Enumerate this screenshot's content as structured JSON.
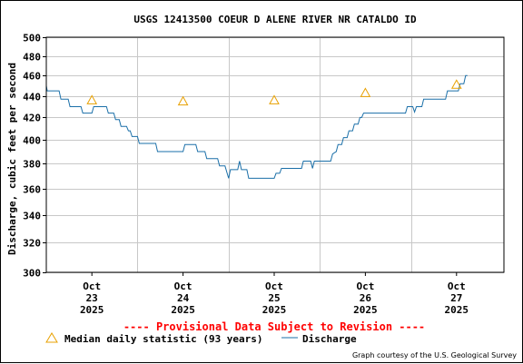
{
  "chart_data": {
    "type": "line",
    "title": "USGS 12413500 COEUR D ALENE RIVER NR CATALDO ID",
    "ylabel": "Discharge, cubic feet per second",
    "xlabel": "",
    "ylim": [
      300,
      500
    ],
    "yscale": "log",
    "yticks": [
      300,
      320,
      340,
      360,
      380,
      400,
      420,
      440,
      460,
      480,
      500
    ],
    "grid": true,
    "x_ticks": [
      {
        "day": 0.5,
        "l1": "Oct",
        "l2": "23",
        "l3": "2025"
      },
      {
        "day": 1.5,
        "l1": "Oct",
        "l2": "24",
        "l3": "2025"
      },
      {
        "day": 2.5,
        "l1": "Oct",
        "l2": "25",
        "l3": "2025"
      },
      {
        "day": 3.5,
        "l1": "Oct",
        "l2": "26",
        "l3": "2025"
      },
      {
        "day": 4.5,
        "l1": "Oct",
        "l2": "27",
        "l3": "2025"
      }
    ],
    "x_gridlines": [
      1,
      2,
      3,
      4
    ],
    "xlim_days": [
      0,
      5.02
    ],
    "series": [
      {
        "name": "Median daily statistic (93 years)",
        "marker": "triangle",
        "color": "#e8a000",
        "points": [
          {
            "day": 0.5,
            "value": 436
          },
          {
            "day": 1.5,
            "value": 435
          },
          {
            "day": 2.5,
            "value": 436
          },
          {
            "day": 3.5,
            "value": 443
          },
          {
            "day": 4.5,
            "value": 451
          }
        ]
      },
      {
        "name": "Discharge",
        "marker": "line",
        "color": "#1a6fa8",
        "points": [
          {
            "day": 0.0,
            "value": 450
          },
          {
            "day": 0.01,
            "value": 445
          },
          {
            "day": 0.14,
            "value": 445
          },
          {
            "day": 0.16,
            "value": 437
          },
          {
            "day": 0.24,
            "value": 437
          },
          {
            "day": 0.26,
            "value": 430
          },
          {
            "day": 0.38,
            "value": 430
          },
          {
            "day": 0.4,
            "value": 424
          },
          {
            "day": 0.5,
            "value": 424
          },
          {
            "day": 0.52,
            "value": 430
          },
          {
            "day": 0.66,
            "value": 430
          },
          {
            "day": 0.68,
            "value": 424
          },
          {
            "day": 0.74,
            "value": 424
          },
          {
            "day": 0.76,
            "value": 418
          },
          {
            "day": 0.8,
            "value": 418
          },
          {
            "day": 0.82,
            "value": 412
          },
          {
            "day": 0.88,
            "value": 412
          },
          {
            "day": 0.9,
            "value": 408
          },
          {
            "day": 0.92,
            "value": 408
          },
          {
            "day": 0.94,
            "value": 403
          },
          {
            "day": 1.0,
            "value": 403
          },
          {
            "day": 1.02,
            "value": 397
          },
          {
            "day": 1.2,
            "value": 397
          },
          {
            "day": 1.22,
            "value": 390
          },
          {
            "day": 1.5,
            "value": 390
          },
          {
            "day": 1.52,
            "value": 396
          },
          {
            "day": 1.64,
            "value": 396
          },
          {
            "day": 1.66,
            "value": 390
          },
          {
            "day": 1.74,
            "value": 390
          },
          {
            "day": 1.76,
            "value": 384
          },
          {
            "day": 1.88,
            "value": 384
          },
          {
            "day": 1.9,
            "value": 378
          },
          {
            "day": 1.96,
            "value": 378
          },
          {
            "day": 1.98,
            "value": 373
          },
          {
            "day": 2.0,
            "value": 368
          },
          {
            "day": 2.02,
            "value": 375
          },
          {
            "day": 2.1,
            "value": 375
          },
          {
            "day": 2.12,
            "value": 382
          },
          {
            "day": 2.14,
            "value": 375
          },
          {
            "day": 2.2,
            "value": 375
          },
          {
            "day": 2.22,
            "value": 368
          },
          {
            "day": 2.5,
            "value": 368
          },
          {
            "day": 2.52,
            "value": 372
          },
          {
            "day": 2.56,
            "value": 372
          },
          {
            "day": 2.58,
            "value": 376
          },
          {
            "day": 2.8,
            "value": 376
          },
          {
            "day": 2.82,
            "value": 382
          },
          {
            "day": 2.9,
            "value": 382
          },
          {
            "day": 2.92,
            "value": 376
          },
          {
            "day": 2.94,
            "value": 382
          },
          {
            "day": 3.12,
            "value": 382
          },
          {
            "day": 3.14,
            "value": 388
          },
          {
            "day": 3.18,
            "value": 390
          },
          {
            "day": 3.2,
            "value": 396
          },
          {
            "day": 3.24,
            "value": 396
          },
          {
            "day": 3.26,
            "value": 402
          },
          {
            "day": 3.3,
            "value": 402
          },
          {
            "day": 3.32,
            "value": 408
          },
          {
            "day": 3.36,
            "value": 408
          },
          {
            "day": 3.38,
            "value": 414
          },
          {
            "day": 3.42,
            "value": 414
          },
          {
            "day": 3.44,
            "value": 420
          },
          {
            "day": 3.46,
            "value": 420
          },
          {
            "day": 3.48,
            "value": 424
          },
          {
            "day": 3.94,
            "value": 424
          },
          {
            "day": 3.96,
            "value": 430
          },
          {
            "day": 4.02,
            "value": 430
          },
          {
            "day": 4.04,
            "value": 425
          },
          {
            "day": 4.06,
            "value": 430
          },
          {
            "day": 4.12,
            "value": 430
          },
          {
            "day": 4.14,
            "value": 437
          },
          {
            "day": 4.38,
            "value": 437
          },
          {
            "day": 4.4,
            "value": 445
          },
          {
            "day": 4.52,
            "value": 445
          },
          {
            "day": 4.54,
            "value": 452
          },
          {
            "day": 4.58,
            "value": 452
          },
          {
            "day": 4.6,
            "value": 460
          },
          {
            "day": 4.62,
            "value": 460
          }
        ]
      }
    ]
  },
  "provisional": "---- Provisional Data Subject to Revision ----",
  "legend": {
    "median_label": "Median daily statistic (93 years)",
    "discharge_label": "Discharge"
  },
  "credit": "Graph courtesy of the U.S. Geological Survey"
}
